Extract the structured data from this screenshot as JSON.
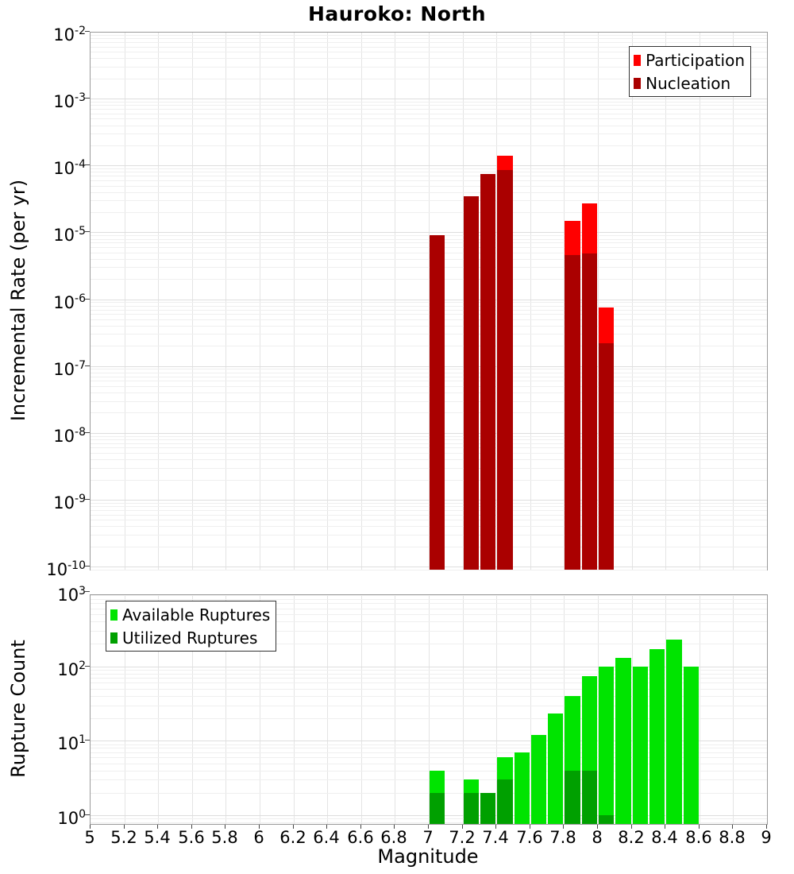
{
  "figure": {
    "title": "Hauroko: North",
    "xlabel": "Magnitude",
    "background": "#ffffff"
  },
  "x_axis": {
    "min": 5,
    "max": 9,
    "tick_values": [
      5,
      5.2,
      5.4,
      5.6,
      5.8,
      6,
      6.2,
      6.4,
      6.6,
      6.8,
      7,
      7.2,
      7.4,
      7.6,
      7.8,
      8,
      8.2,
      8.4,
      8.6,
      8.8,
      9
    ],
    "tick_labels": [
      "5",
      "5.2",
      "5.4",
      "5.6",
      "5.8",
      "6",
      "6.2",
      "6.4",
      "6.6",
      "6.8",
      "7",
      "7.2",
      "7.4",
      "7.6",
      "7.8",
      "8",
      "8.2",
      "8.4",
      "8.6",
      "8.8",
      "9"
    ]
  },
  "chart_data": [
    {
      "type": "bar",
      "id": "incremental-rate",
      "title": "Hauroko: North",
      "xlabel": "Magnitude",
      "ylabel": "Incremental Rate (per yr)",
      "y_scale": "log",
      "y_tick_exponents": [
        -2,
        -3,
        -4,
        -5,
        -6,
        -7,
        -8,
        -9,
        -10
      ],
      "ylim": [
        1e-10,
        0.01
      ],
      "xlim": [
        5,
        9
      ],
      "grid": true,
      "bin_width": 0.1,
      "legend": {
        "position": "top-right",
        "items": [
          {
            "label": "Participation",
            "color": "#ff0000"
          },
          {
            "label": "Nucleation",
            "color": "#aa0000"
          }
        ]
      },
      "series": [
        {
          "name": "Participation",
          "color": "#ff0000",
          "points": [
            [
              7.0,
              9e-06
            ],
            [
              7.2,
              3.5e-05
            ],
            [
              7.3,
              7.4e-05
            ],
            [
              7.4,
              0.00014
            ],
            [
              7.8,
              1.5e-05
            ],
            [
              7.9,
              2.7e-05
            ],
            [
              8.0,
              7.5e-07
            ]
          ]
        },
        {
          "name": "Nucleation",
          "color": "#aa0000",
          "points": [
            [
              7.0,
              9e-06
            ],
            [
              7.2,
              3.5e-05
            ],
            [
              7.3,
              7.4e-05
            ],
            [
              7.4,
              8.5e-05
            ],
            [
              7.8,
              4.6e-06
            ],
            [
              7.9,
              4.8e-06
            ],
            [
              8.0,
              2.2e-07
            ]
          ]
        }
      ]
    },
    {
      "type": "bar",
      "id": "rupture-count",
      "xlabel": "Magnitude",
      "ylabel": "Rupture Count",
      "y_scale": "log",
      "y_tick_exponents": [
        3,
        2,
        1,
        0
      ],
      "ylim": [
        1,
        1000
      ],
      "xlim": [
        5,
        9
      ],
      "grid": true,
      "bin_width": 0.1,
      "legend": {
        "position": "top-left",
        "items": [
          {
            "label": "Available Ruptures",
            "color": "#00e400"
          },
          {
            "label": "Utilized Ruptures",
            "color": "#00a000"
          }
        ]
      },
      "series": [
        {
          "name": "Available Ruptures",
          "color": "#00e400",
          "points": [
            [
              7.0,
              4
            ],
            [
              7.2,
              3
            ],
            [
              7.3,
              2
            ],
            [
              7.4,
              6
            ],
            [
              7.5,
              7
            ],
            [
              7.6,
              12
            ],
            [
              7.7,
              23
            ],
            [
              7.8,
              40
            ],
            [
              7.9,
              73
            ],
            [
              8.0,
              100
            ],
            [
              8.1,
              130
            ],
            [
              8.2,
              100
            ],
            [
              8.3,
              170
            ],
            [
              8.4,
              230
            ],
            [
              8.5,
              100
            ]
          ]
        },
        {
          "name": "Utilized Ruptures",
          "color": "#00a000",
          "points": [
            [
              7.0,
              2
            ],
            [
              7.2,
              2
            ],
            [
              7.3,
              2
            ],
            [
              7.4,
              3
            ],
            [
              7.8,
              4
            ],
            [
              7.9,
              4
            ],
            [
              8.0,
              1
            ]
          ]
        }
      ]
    }
  ]
}
